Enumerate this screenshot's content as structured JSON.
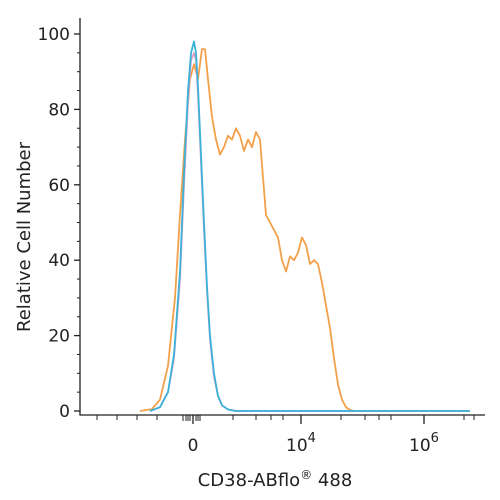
{
  "chart_data": {
    "type": "line",
    "xlabel": "CD38-ABflo",
    "xlabel_superscript": "®",
    "xlabel_suffix": " 488",
    "ylabel": "Relative Cell Number",
    "ylim": [
      0,
      100
    ],
    "y_ticks": [
      0,
      20,
      40,
      60,
      80,
      100
    ],
    "x_scale": "biexponential",
    "x_ticks": [
      {
        "label": "0",
        "exp": ""
      },
      {
        "label": "10",
        "exp": "4"
      },
      {
        "label": "10",
        "exp": "6"
      }
    ],
    "grid": false,
    "legend": "none",
    "series": [
      {
        "color": "#f2a04a",
        "x": [
          140,
          152,
          160,
          168,
          175,
          180,
          185,
          190,
          194,
          198,
          202,
          205,
          208,
          212,
          216,
          220,
          224,
          228,
          232,
          236,
          240,
          244,
          248,
          252,
          256,
          260,
          263,
          266,
          270,
          274,
          278,
          282,
          286,
          290,
          294,
          298,
          302,
          306,
          310,
          314,
          318,
          322,
          326,
          330,
          334,
          338,
          342,
          346,
          350,
          354,
          360,
          370,
          470
        ],
        "y": [
          0,
          0.5,
          3,
          12,
          30,
          52,
          72,
          88,
          92,
          88,
          96,
          96,
          88,
          78,
          72,
          68,
          70,
          73,
          72,
          75,
          73,
          69,
          72,
          70,
          74,
          72,
          62,
          52,
          50,
          48,
          46,
          40,
          37,
          41,
          40,
          42,
          46,
          44,
          39,
          40,
          39,
          34,
          28,
          22,
          14,
          7,
          3,
          1,
          0.3,
          0,
          0,
          0,
          0
        ]
      },
      {
        "color": "#d9a0c8",
        "x": [
          150,
          160,
          168,
          174,
          180,
          184,
          188,
          191,
          194,
          196,
          198,
          201,
          204,
          207,
          210,
          214,
          218,
          222,
          228,
          236,
          470
        ],
        "y": [
          0,
          1,
          5,
          14,
          35,
          60,
          82,
          93,
          95,
          93,
          84,
          66,
          48,
          32,
          19,
          9,
          4,
          1.5,
          0.4,
          0,
          0
        ]
      },
      {
        "color": "#3bb2d8",
        "x": [
          150,
          160,
          168,
          174,
          180,
          184,
          188,
          191,
          194,
          196,
          198,
          201,
          204,
          207,
          210,
          214,
          218,
          222,
          228,
          236,
          470
        ],
        "y": [
          0,
          1,
          5,
          15,
          37,
          63,
          85,
          95,
          98,
          95,
          86,
          68,
          50,
          33,
          20,
          10,
          4,
          1.5,
          0.4,
          0,
          0
        ]
      }
    ]
  }
}
